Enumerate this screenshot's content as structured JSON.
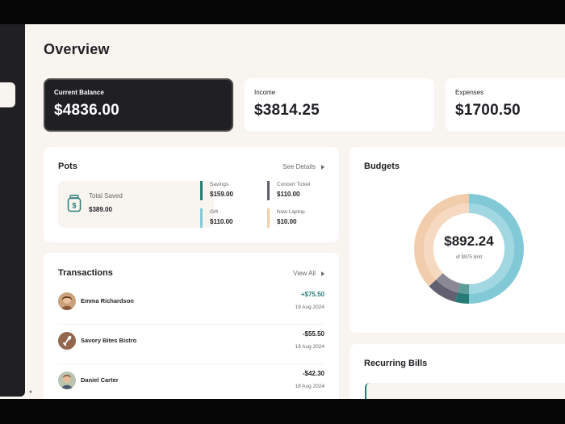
{
  "page": {
    "title": "Overview"
  },
  "summary": {
    "current_balance": {
      "label": "Current Balance",
      "value": "$4836.00"
    },
    "income": {
      "label": "Income",
      "value": "$3814.25"
    },
    "expenses": {
      "label": "Expenses",
      "value": "$1700.50"
    }
  },
  "pots": {
    "title": "Pots",
    "link": "See Details",
    "total_saved": {
      "label": "Total Saved",
      "value": "$389.00",
      "icon": "jar-icon"
    },
    "items": [
      {
        "name": "Savings",
        "amount": "$159.00",
        "color": "#277c78"
      },
      {
        "name": "Concert Ticket",
        "amount": "$110.00",
        "color": "#626070"
      },
      {
        "name": "Gift",
        "amount": "$110.00",
        "color": "#82c9d7"
      },
      {
        "name": "New Laptop",
        "amount": "$10.00",
        "color": "#f2cdac"
      }
    ]
  },
  "transactions": {
    "title": "Transactions",
    "link": "View All",
    "items": [
      {
        "name": "Emma Richardson",
        "amount": "+$75.50",
        "date": "19 Aug 2024",
        "positive": true,
        "avatar": "person-avatar"
      },
      {
        "name": "Savory Bites Bistro",
        "amount": "-$55.50",
        "date": "19 Aug 2024",
        "positive": false,
        "avatar": "restaurant-icon"
      },
      {
        "name": "Daniel Carter",
        "amount": "-$42.30",
        "date": "18 Aug 2024",
        "positive": false,
        "avatar": "person-avatar"
      }
    ]
  },
  "budgets": {
    "title": "Budgets",
    "spent": "$892.24",
    "limit_text": "of $975 limit",
    "segments": [
      {
        "color": "#82c9d7",
        "value": 50
      },
      {
        "color": "#277c78",
        "value": 4
      },
      {
        "color": "#626070",
        "value": 9
      },
      {
        "color": "#f2cdac",
        "value": 37
      }
    ]
  },
  "recurring_bills": {
    "title": "Recurring Bills"
  },
  "colors": {
    "background": "#f8f4f0",
    "dark": "#201f24",
    "green": "#277c78",
    "cyan": "#82c9d7",
    "navy": "#626070",
    "yellow": "#f2cdac",
    "grey": "#696868"
  }
}
